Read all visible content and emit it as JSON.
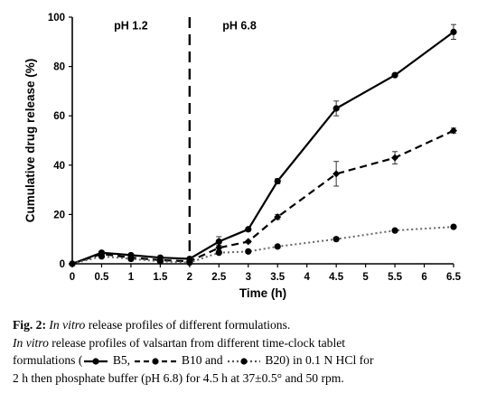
{
  "chart_data": {
    "type": "line",
    "xlabel": "Time (h)",
    "ylabel": "Cumulative drug release (%)",
    "xlim": [
      0,
      6.5
    ],
    "ylim": [
      0,
      100
    ],
    "x_ticks": [
      "0",
      "0.5",
      "1",
      "1.5",
      "2",
      "2.5",
      "3",
      "3.5",
      "4",
      "4.5",
      "5",
      "5.5",
      "6",
      "6.5"
    ],
    "y_ticks": [
      "0",
      "20",
      "40",
      "60",
      "80",
      "100"
    ],
    "grid": false,
    "annotations": [
      {
        "text": "pH 1.2",
        "x": 1.0,
        "y": 95
      },
      {
        "text": "pH 6.8",
        "x": 2.85,
        "y": 95
      }
    ],
    "divider_x": 2,
    "x": [
      0,
      0.5,
      1,
      1.5,
      2,
      2.5,
      3,
      3.5,
      4.5,
      5.5,
      6.5
    ],
    "series": [
      {
        "name": "B5",
        "line": "solid",
        "marker": "circle",
        "values": [
          0,
          4.5,
          3.5,
          2.5,
          2,
          9,
          14,
          33.5,
          63,
          76.5,
          94
        ],
        "errors": [
          0,
          0.5,
          0.5,
          0.5,
          0.5,
          2,
          0.5,
          1,
          3,
          0.5,
          3
        ]
      },
      {
        "name": "B10",
        "line": "dashed",
        "marker": "diamond",
        "values": [
          0,
          4,
          2.5,
          1.5,
          1,
          6.5,
          9,
          19,
          36.5,
          43,
          54
        ],
        "errors": [
          0,
          0.5,
          0.5,
          0.5,
          0.5,
          1,
          0.5,
          1,
          5,
          2.5,
          1
        ]
      },
      {
        "name": "B20",
        "line": "dotted",
        "marker": "circle",
        "values": [
          0,
          3,
          2,
          1,
          0.5,
          4.5,
          5,
          7,
          10,
          13.5,
          15
        ],
        "errors": [
          0,
          0,
          0,
          0,
          0,
          0,
          0,
          0,
          0,
          0,
          0
        ]
      }
    ]
  },
  "caption": {
    "fig_label": "Fig. 2:",
    "title_italic": "In vitro",
    "title_rest": " release profiles of different formulations.",
    "line2_italic": "In vitro",
    "line2_rest": " release profiles of valsartan from different time-clock tablet",
    "line3_pre": "formulations (",
    "b5": "B5,",
    "b10": "B10 and",
    "b20": "B20) in 0.1 N HCl for",
    "line4": "2 h then phosphate buffer (pH 6.8) for 4.5 h at 37±0.5° and 50 rpm."
  }
}
